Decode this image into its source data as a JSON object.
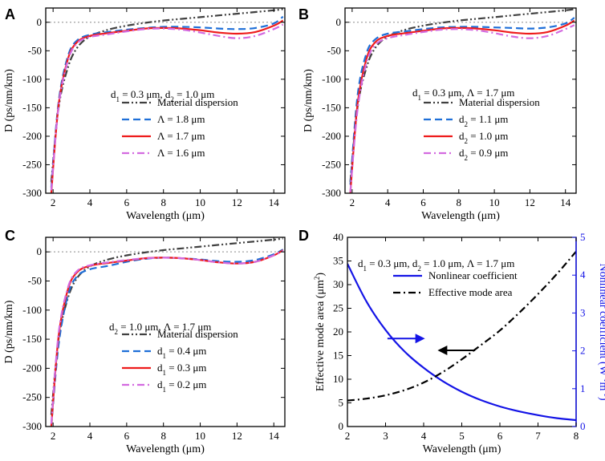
{
  "chart_data": [
    {
      "panel": "A",
      "type": "line",
      "xlabel": "Wavelength (μm)",
      "ylabel": "D (ps/nm/km)",
      "xlim": [
        1.6,
        14.6
      ],
      "ylim": [
        -300,
        25
      ],
      "xticks": [
        2,
        4,
        6,
        8,
        10,
        12,
        14
      ],
      "yticks": [
        -300,
        -250,
        -200,
        -150,
        -100,
        -50,
        0
      ],
      "annotation": "d1 = 0.3 μm, d2 = 1.0 μm",
      "series": [
        {
          "name": "Material dispersion",
          "color": "#404040",
          "style": "dashdotdot",
          "x": [
            1.9,
            2.3,
            2.8,
            3.3,
            4,
            5,
            6,
            7,
            8,
            9,
            10,
            11,
            12,
            13,
            14,
            14.5
          ],
          "y": [
            -280,
            -150,
            -80,
            -45,
            -25,
            -13,
            -6,
            -1,
            3,
            6,
            9,
            12,
            15,
            18,
            21,
            23
          ]
        },
        {
          "name": "Λ = 1.8 μm",
          "color": "#1f6fd8",
          "style": "dash",
          "x": [
            1.9,
            2.3,
            2.8,
            3.3,
            4,
            5,
            6,
            7,
            8,
            9,
            10,
            11,
            12,
            13,
            14,
            14.5
          ],
          "y": [
            -290,
            -140,
            -60,
            -32,
            -22,
            -17,
            -13,
            -10,
            -8,
            -8,
            -9,
            -11,
            -12,
            -10,
            -2,
            10
          ]
        },
        {
          "name": "Λ = 1.7 μm",
          "color": "#ee1c1c",
          "style": "solid",
          "x": [
            1.9,
            2.3,
            2.8,
            3.3,
            4,
            5,
            6,
            7,
            8,
            9,
            10,
            11,
            12,
            13,
            14,
            14.5
          ],
          "y": [
            -300,
            -145,
            -65,
            -35,
            -24,
            -19,
            -15,
            -11,
            -10,
            -11,
            -14,
            -18,
            -20,
            -17,
            -6,
            3
          ]
        },
        {
          "name": "Λ = 1.6 μm",
          "color": "#d36ae0",
          "style": "dashdot",
          "x": [
            1.9,
            2.3,
            2.8,
            3.3,
            4,
            5,
            6,
            7,
            8,
            9,
            10,
            11,
            12,
            13,
            14,
            14.5
          ],
          "y": [
            -295,
            -148,
            -68,
            -37,
            -26,
            -21,
            -16,
            -12,
            -11,
            -13,
            -18,
            -24,
            -28,
            -24,
            -12,
            -4
          ]
        }
      ]
    },
    {
      "panel": "B",
      "type": "line",
      "xlabel": "Wavelength (μm)",
      "ylabel": "D (ps/nm/km)",
      "xlim": [
        1.6,
        14.6
      ],
      "ylim": [
        -300,
        25
      ],
      "xticks": [
        2,
        4,
        6,
        8,
        10,
        12,
        14
      ],
      "yticks": [
        -300,
        -250,
        -200,
        -150,
        -100,
        -50,
        0
      ],
      "annotation": "d1 = 0.3 μm, Λ = 1.7 μm",
      "series": [
        {
          "name": "Material dispersion",
          "color": "#404040",
          "style": "dashdotdot",
          "x": [
            1.9,
            2.3,
            2.8,
            3.3,
            4,
            5,
            6,
            7,
            8,
            9,
            10,
            11,
            12,
            13,
            14,
            14.5
          ],
          "y": [
            -280,
            -150,
            -80,
            -45,
            -25,
            -13,
            -6,
            -1,
            3,
            6,
            9,
            12,
            15,
            18,
            21,
            23
          ]
        },
        {
          "name": "d2 = 1.1 μm",
          "color": "#1f6fd8",
          "style": "dash",
          "x": [
            1.9,
            2.3,
            2.8,
            3.3,
            4,
            5,
            6,
            7,
            8,
            9,
            10,
            11,
            12,
            13,
            14,
            14.5
          ],
          "y": [
            -285,
            -130,
            -55,
            -30,
            -20,
            -16,
            -12,
            -9,
            -8,
            -8,
            -9,
            -10,
            -11,
            -9,
            -2,
            8
          ]
        },
        {
          "name": "d2 = 1.0 μm",
          "color": "#ee1c1c",
          "style": "solid",
          "x": [
            1.9,
            2.3,
            2.8,
            3.3,
            4,
            5,
            6,
            7,
            8,
            9,
            10,
            11,
            12,
            13,
            14,
            14.5
          ],
          "y": [
            -300,
            -145,
            -65,
            -35,
            -24,
            -19,
            -15,
            -11,
            -10,
            -11,
            -14,
            -18,
            -20,
            -17,
            -6,
            3
          ]
        },
        {
          "name": "d2 = 0.9 μm",
          "color": "#d36ae0",
          "style": "dashdot",
          "x": [
            1.9,
            2.3,
            2.8,
            3.3,
            4,
            5,
            6,
            7,
            8,
            9,
            10,
            11,
            12,
            13,
            14,
            14.5
          ],
          "y": [
            -298,
            -155,
            -72,
            -40,
            -28,
            -22,
            -17,
            -13,
            -12,
            -14,
            -19,
            -25,
            -28,
            -24,
            -12,
            -5
          ]
        }
      ]
    },
    {
      "panel": "C",
      "type": "line",
      "xlabel": "Wavelength (μm)",
      "ylabel": "D (ps/nm/km)",
      "xlim": [
        1.6,
        14.6
      ],
      "ylim": [
        -300,
        25
      ],
      "xticks": [
        2,
        4,
        6,
        8,
        10,
        12,
        14
      ],
      "yticks": [
        -300,
        -250,
        -200,
        -150,
        -100,
        -50,
        0
      ],
      "annotation": "d2 = 1.0 μm, Λ = 1.7 μm",
      "series": [
        {
          "name": "Material dispersion",
          "color": "#404040",
          "style": "dashdotdot",
          "x": [
            1.9,
            2.3,
            2.8,
            3.3,
            4,
            5,
            6,
            7,
            8,
            9,
            10,
            11,
            12,
            13,
            14,
            14.5
          ],
          "y": [
            -280,
            -150,
            -80,
            -45,
            -25,
            -13,
            -6,
            -1,
            3,
            6,
            9,
            12,
            15,
            18,
            21,
            23
          ]
        },
        {
          "name": "d1 = 0.4 μm",
          "color": "#1f6fd8",
          "style": "dash",
          "x": [
            1.9,
            2.3,
            2.8,
            3.3,
            4,
            5,
            6,
            7,
            8,
            9,
            10,
            11,
            12,
            13,
            14,
            14.5
          ],
          "y": [
            -300,
            -160,
            -75,
            -42,
            -30,
            -24,
            -17,
            -12,
            -10,
            -11,
            -13,
            -16,
            -17,
            -14,
            -4,
            4
          ]
        },
        {
          "name": "d1 = 0.3 μm",
          "color": "#ee1c1c",
          "style": "solid",
          "x": [
            1.9,
            2.3,
            2.8,
            3.3,
            4,
            5,
            6,
            7,
            8,
            9,
            10,
            11,
            12,
            13,
            14,
            14.5
          ],
          "y": [
            -300,
            -145,
            -65,
            -35,
            -24,
            -19,
            -15,
            -11,
            -10,
            -11,
            -14,
            -18,
            -20,
            -17,
            -6,
            3
          ]
        },
        {
          "name": "d1 = 0.2 μm",
          "color": "#d36ae0",
          "style": "dashdot",
          "x": [
            1.9,
            2.3,
            2.8,
            3.3,
            4,
            5,
            6,
            7,
            8,
            9,
            10,
            11,
            12,
            13,
            14,
            14.5
          ],
          "y": [
            -295,
            -140,
            -62,
            -33,
            -23,
            -18,
            -14,
            -11,
            -10,
            -11,
            -14,
            -18,
            -20,
            -17,
            -6,
            2
          ]
        }
      ]
    },
    {
      "panel": "D",
      "type": "line",
      "xlabel": "Wavelength (μm)",
      "ylabel": "Effective mode area (μm²)",
      "y2label": "Nonlinear coefficient (W⁻¹m⁻¹)",
      "xlim": [
        2,
        8
      ],
      "ylim": [
        0,
        40
      ],
      "y2lim": [
        0,
        5
      ],
      "xticks": [
        2,
        3,
        4,
        5,
        6,
        7,
        8
      ],
      "yticks": [
        0,
        5,
        10,
        15,
        20,
        25,
        30,
        35,
        40
      ],
      "y2ticks": [
        0,
        1,
        2,
        3,
        4,
        5
      ],
      "annotation": "d1 = 0.3 μm, d2 = 1.0 μm, Λ = 1.7 μm",
      "series": [
        {
          "name": "Nonlinear coefficient",
          "color": "#1414e6",
          "style": "solid",
          "axis": "right",
          "x": [
            2,
            2.5,
            3,
            3.5,
            4,
            4.5,
            5,
            5.5,
            6,
            6.5,
            7,
            7.5,
            8
          ],
          "y": [
            4.3,
            3.3,
            2.55,
            1.98,
            1.55,
            1.2,
            0.92,
            0.7,
            0.53,
            0.4,
            0.3,
            0.22,
            0.17
          ]
        },
        {
          "name": "Effective mode area",
          "color": "#000000",
          "style": "dashdot",
          "axis": "left",
          "x": [
            2,
            2.5,
            3,
            3.5,
            4,
            4.5,
            5,
            5.5,
            6,
            6.5,
            7,
            7.5,
            8
          ],
          "y": [
            5.5,
            5.9,
            6.6,
            7.7,
            9.3,
            11.5,
            14.2,
            17.2,
            20.3,
            24.0,
            28.0,
            32.3,
            37.0
          ]
        }
      ],
      "arrows": [
        {
          "direction": "right",
          "color": "#1414e6"
        },
        {
          "direction": "left",
          "color": "#000000"
        }
      ]
    }
  ]
}
